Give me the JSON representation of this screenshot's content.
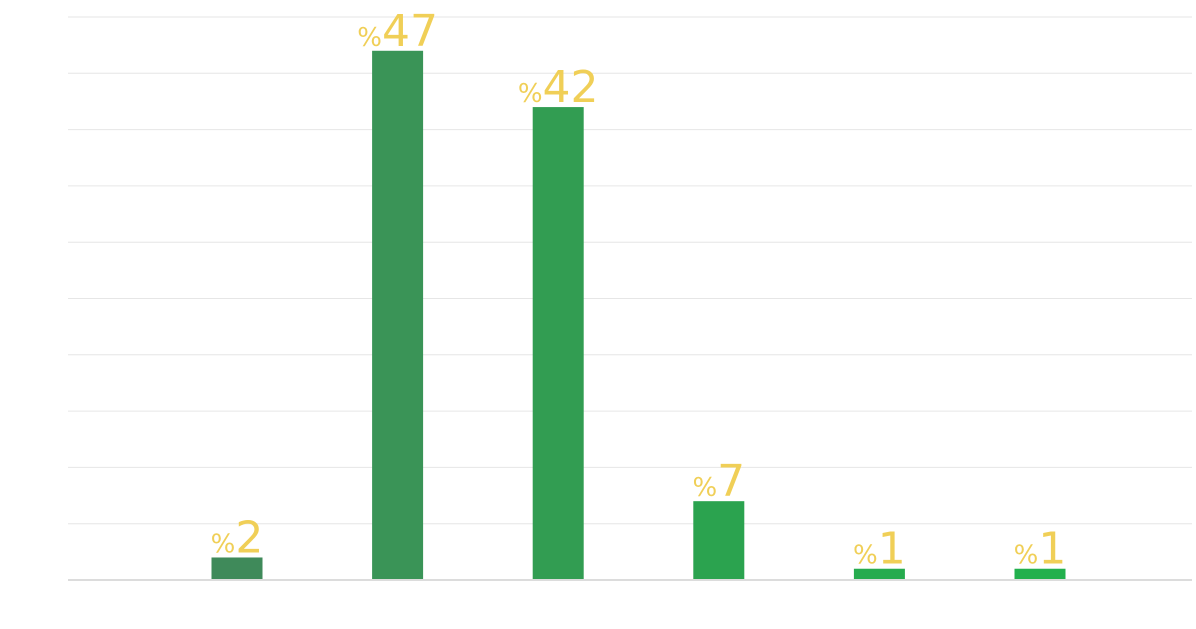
{
  "chart_data": {
    "type": "bar",
    "categories": [
      "",
      "",
      "",
      "",
      "",
      ""
    ],
    "series": [
      {
        "values": [
          2,
          47,
          42,
          7,
          1,
          1
        ]
      }
    ],
    "data_labels": [
      {
        "prefix": "%",
        "value": "2"
      },
      {
        "prefix": "%",
        "value": "47"
      },
      {
        "prefix": "%",
        "value": "42"
      },
      {
        "prefix": "%",
        "value": "7"
      },
      {
        "prefix": "%",
        "value": "1"
      },
      {
        "prefix": "%",
        "value": "1"
      }
    ],
    "bar_colors": [
      "#3f8a5a",
      "#3a9457",
      "#329d52",
      "#2ba34f",
      "#26ab4e",
      "#22b04d"
    ],
    "label_color": "#f0cf57",
    "ylim": [
      0,
      50
    ],
    "gridlines": 10,
    "grid": true,
    "title": "",
    "xlabel": "",
    "ylabel": ""
  }
}
